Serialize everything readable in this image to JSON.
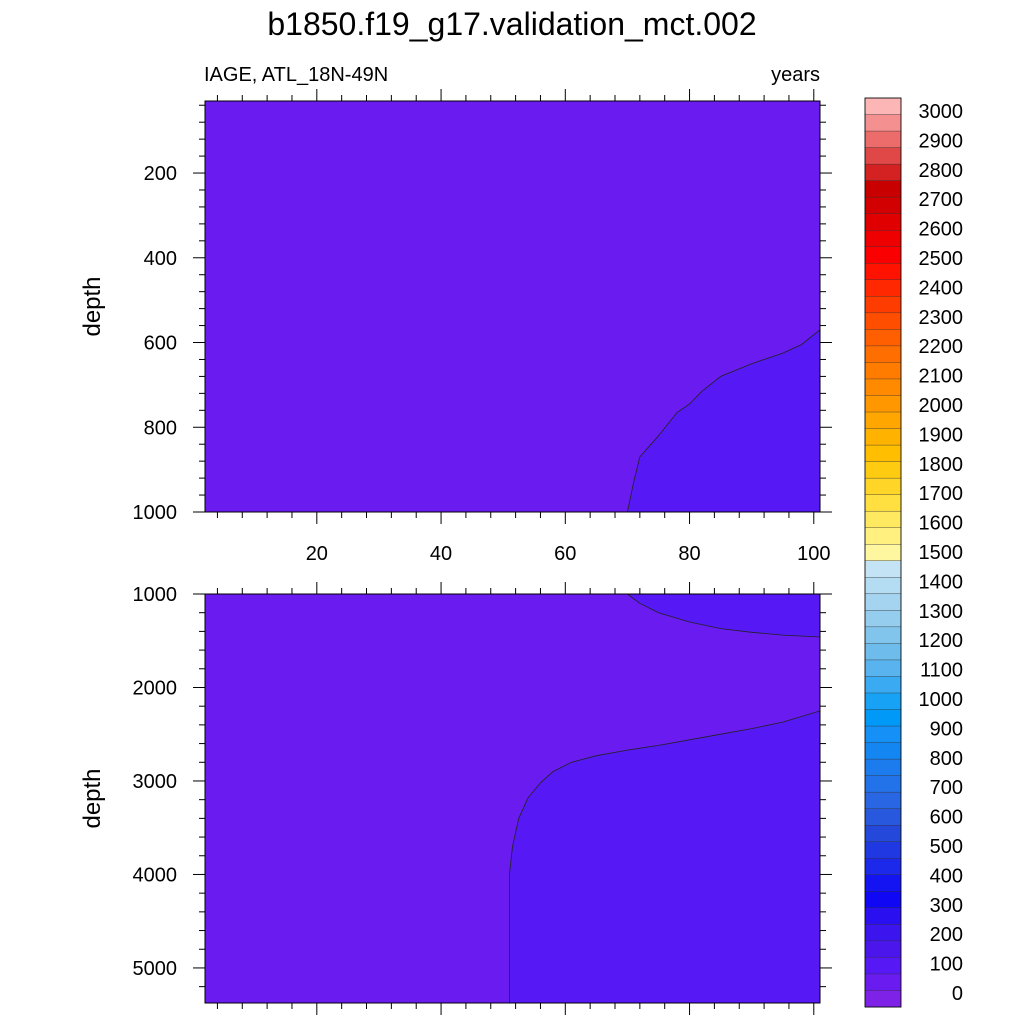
{
  "title": "b1850.f19_g17.validation_mct.002",
  "subtitle_left": "IAGE, ATL_18N-49N",
  "subtitle_right": "years",
  "chart_data": [
    {
      "type": "heatmap",
      "panel": "upper",
      "ylabel": "depth",
      "x_ticks": [
        20,
        40,
        60,
        80,
        100
      ],
      "xlim": [
        2,
        101
      ],
      "y_ticks": [
        200,
        400,
        600,
        800,
        1000
      ],
      "ylim": [
        1000,
        30
      ],
      "y_inverted": true,
      "fill_levels": [
        {
          "range": "<0",
          "color": "#6a1cf0"
        },
        {
          "range": "0-100",
          "color": "#5618f5"
        }
      ],
      "contours": [
        {
          "level": 0,
          "points": [
            [
              70,
              1000
            ],
            [
              71,
              930
            ],
            [
              72,
              870
            ],
            [
              75,
              820
            ],
            [
              78,
              765
            ],
            [
              80,
              745
            ],
            [
              82,
              715
            ],
            [
              85,
              680
            ],
            [
              90,
              650
            ],
            [
              95,
              625
            ],
            [
              98,
              605
            ],
            [
              101,
              570
            ]
          ]
        }
      ]
    },
    {
      "type": "heatmap",
      "panel": "lower",
      "ylabel": "depth",
      "xlim": [
        2,
        101
      ],
      "y_ticks": [
        1000,
        2000,
        3000,
        4000,
        5000
      ],
      "ylim": [
        5375,
        1000
      ],
      "y_inverted": true,
      "fill_levels": [
        {
          "range": "<0",
          "color": "#6a1cf0"
        },
        {
          "range": "0-100",
          "color": "#5618f5"
        }
      ],
      "contours": [
        {
          "level": 0,
          "points": [
            [
              51,
              5375
            ],
            [
              51,
              4000
            ],
            [
              51.5,
              3700
            ],
            [
              52.5,
              3400
            ],
            [
              54,
              3180
            ],
            [
              56,
              3020
            ],
            [
              58,
              2900
            ],
            [
              61,
              2800
            ],
            [
              65,
              2730
            ],
            [
              70,
              2670
            ],
            [
              75,
              2620
            ],
            [
              80,
              2560
            ],
            [
              85,
              2500
            ],
            [
              90,
              2440
            ],
            [
              95,
              2370
            ],
            [
              98,
              2310
            ],
            [
              101,
              2250
            ]
          ]
        },
        {
          "level": 0,
          "points": [
            [
              70,
              1000
            ],
            [
              72,
              1100
            ],
            [
              75,
              1200
            ],
            [
              80,
              1300
            ],
            [
              85,
              1370
            ],
            [
              90,
              1410
            ],
            [
              95,
              1440
            ],
            [
              101,
              1460
            ]
          ]
        }
      ]
    }
  ],
  "colorbar": {
    "labels": [
      "3000",
      "2900",
      "2800",
      "2700",
      "2600",
      "2500",
      "2400",
      "2300",
      "2200",
      "2100",
      "2000",
      "1900",
      "1800",
      "1700",
      "1600",
      "1500",
      "1400",
      "1300",
      "1200",
      "1100",
      "1000",
      "900",
      "800",
      "700",
      "600",
      "500",
      "400",
      "300",
      "200",
      "100",
      "0"
    ],
    "colors": [
      "#fcb6b6",
      "#f49090",
      "#ec6c6c",
      "#e04848",
      "#d42222",
      "#c80000",
      "#d20000",
      "#e00000",
      "#ee0000",
      "#fa0000",
      "#ff1200",
      "#ff2800",
      "#ff3c00",
      "#ff4e00",
      "#ff5f00",
      "#ff6e00",
      "#ff7c00",
      "#ff8a00",
      "#ff9800",
      "#ffa600",
      "#ffb300",
      "#ffbf00",
      "#ffcb10",
      "#ffd628",
      "#ffe040",
      "#ffe960",
      "#fff080",
      "#fff6a0",
      "#c4e4f6",
      "#b4dcf2",
      "#a4d4f0",
      "#94cdee",
      "#82c5ec",
      "#6ebcec",
      "#58b3ee",
      "#3aaaf2",
      "#18a2f6",
      "#0099f8",
      "#1490f6",
      "#1486f2",
      "#1c7cee",
      "#2272ea",
      "#2866e4",
      "#2858de",
      "#2448da",
      "#2038e2",
      "#1c28ea",
      "#1414f2",
      "#1008f4",
      "#2a10f0",
      "#3c14ee",
      "#4a16ec",
      "#5618f5",
      "#6a1cf0",
      "#7d22e6"
    ]
  }
}
